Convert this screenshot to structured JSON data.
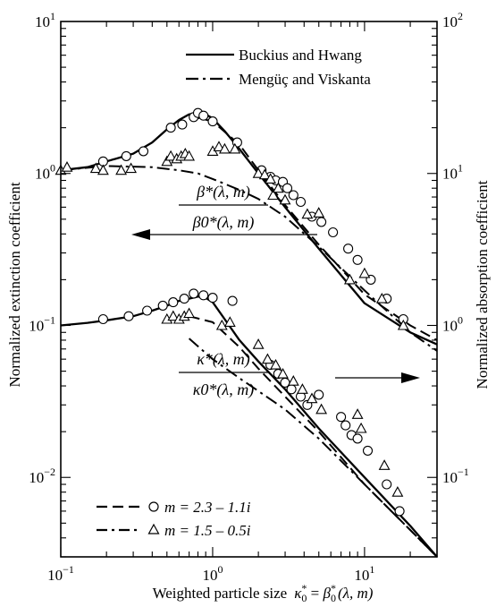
{
  "chart_data": {
    "type": "scatter",
    "x_scale": "log",
    "y_scale": "log",
    "xlim": [
      0.1,
      30
    ],
    "ylim_left": [
      0.003,
      10
    ],
    "ylim_right": [
      0.03,
      100
    ],
    "grid": false,
    "legend_position": "top-right",
    "x_ticks": [
      {
        "value": 0.1,
        "base": "10",
        "exp": "−1"
      },
      {
        "value": 1,
        "base": "10",
        "exp": "0"
      },
      {
        "value": 10,
        "base": "10",
        "exp": "1"
      }
    ],
    "y_left_ticks": [
      {
        "value": 0.01,
        "base": "10",
        "exp": "−2"
      },
      {
        "value": 0.1,
        "base": "10",
        "exp": "−1"
      },
      {
        "value": 1,
        "base": "10",
        "exp": "0"
      },
      {
        "value": 10,
        "base": "10",
        "exp": "1"
      }
    ],
    "y_right_ticks": [
      {
        "value": 0.1,
        "base": "10",
        "exp": "−1"
      },
      {
        "value": 1,
        "base": "10",
        "exp": "0"
      },
      {
        "value": 10,
        "base": "10",
        "exp": "1"
      },
      {
        "value": 100,
        "base": "10",
        "exp": "2"
      }
    ],
    "xlabel": "Weighted particle size",
    "xlabel_math": {
      "k": "κ",
      "sup": "*",
      "sub": "0",
      "eq": " = ",
      "b": "β",
      "args": "(λ, m)"
    },
    "ylabel": "Normalized extinction coefficient",
    "ylabel_right": "Normalized absorption coefficient",
    "legend": [
      {
        "label": "Buckius and Hwang",
        "style": "solid"
      },
      {
        "label": "Mengüç and Viskanta",
        "style": "dash-dot"
      }
    ],
    "marker_legend": [
      {
        "style": "dashed",
        "marker": "circle",
        "label": "m = 2.3 – 1.1i"
      },
      {
        "style": "dash-dot",
        "marker": "triangle",
        "label": "m = 1.5 – 0.5i"
      }
    ],
    "annotations": {
      "beta_num": "β*(λ, m)",
      "beta_den": "β0*(λ, m)",
      "kappa_num": "κ*(λ, m)",
      "kappa_den": "κ0*(λ, m)",
      "beta_axis": "left",
      "kappa_axis": "right"
    },
    "series": [
      {
        "name": "Buckius and Hwang",
        "axis": "left",
        "style": "solid",
        "x": [
          0.1,
          0.15,
          0.2,
          0.3,
          0.4,
          0.5,
          0.6,
          0.7,
          0.8,
          0.9,
          1.0,
          1.2,
          1.5,
          2,
          3,
          5,
          10,
          20,
          30
        ],
        "y": [
          1.05,
          1.1,
          1.2,
          1.35,
          1.6,
          1.95,
          2.25,
          2.45,
          2.5,
          2.45,
          2.3,
          1.9,
          1.45,
          1.0,
          0.6,
          0.32,
          0.14,
          0.09,
          0.075
        ]
      },
      {
        "name": "Mengüç and Viskanta",
        "axis": "left",
        "style": "dash-dot",
        "x": [
          0.1,
          0.2,
          0.4,
          0.6,
          0.8,
          1.0,
          1.5,
          2,
          3,
          5,
          10,
          20,
          30
        ],
        "y": [
          1.05,
          1.12,
          1.1,
          1.05,
          1.0,
          0.92,
          0.78,
          0.68,
          0.52,
          0.33,
          0.17,
          0.09,
          0.068
        ]
      },
      {
        "name": "Dashed m = 2.3 – 1.1i",
        "axis": "left",
        "style": "dashed",
        "x": [
          0.7,
          1.0,
          1.5,
          2,
          3,
          5,
          10,
          20,
          30
        ],
        "y": [
          2.4,
          2.2,
          1.55,
          1.05,
          0.62,
          0.34,
          0.16,
          0.1,
          0.08
        ]
      },
      {
        "name": "m = 2.3 – 1.1i",
        "axis": "left",
        "marker": "circle",
        "x": [
          0.19,
          0.27,
          0.35,
          0.53,
          0.63,
          0.75,
          0.8,
          0.87,
          1.0,
          1.45,
          2.1,
          2.4,
          2.6,
          2.9,
          3.1,
          3.4,
          3.8,
          4.5,
          5.2,
          6.2,
          7.8,
          9.0,
          11.0,
          14.0,
          18.0
        ],
        "y": [
          1.2,
          1.3,
          1.4,
          2.0,
          2.1,
          2.35,
          2.5,
          2.4,
          2.2,
          1.6,
          1.05,
          0.95,
          0.9,
          0.88,
          0.8,
          0.72,
          0.65,
          0.52,
          0.48,
          0.41,
          0.32,
          0.27,
          0.2,
          0.15,
          0.11
        ]
      },
      {
        "name": "m = 1.5 – 0.5i",
        "axis": "left",
        "marker": "triangle",
        "x": [
          0.1,
          0.11,
          0.17,
          0.19,
          0.25,
          0.29,
          0.5,
          0.53,
          0.58,
          0.62,
          0.66,
          0.7,
          1.0,
          1.1,
          1.2,
          1.4,
          2.0,
          2.2,
          2.4,
          2.5,
          2.7,
          3.0,
          4.2,
          5.0,
          8.0,
          10.0,
          13.0,
          18.0
        ],
        "y": [
          1.05,
          1.1,
          1.08,
          1.05,
          1.05,
          1.08,
          1.2,
          1.3,
          1.25,
          1.3,
          1.35,
          1.3,
          1.4,
          1.5,
          1.45,
          1.45,
          1.0,
          0.98,
          0.92,
          0.72,
          0.8,
          0.67,
          0.54,
          0.55,
          0.2,
          0.22,
          0.15,
          0.1
        ]
      },
      {
        "name": "Buckius and Hwang",
        "axis": "right",
        "style": "solid",
        "x": [
          0.1,
          0.15,
          0.2,
          0.3,
          0.4,
          0.5,
          0.6,
          0.7,
          0.8,
          0.9,
          1.0,
          1.2,
          1.5,
          2,
          3,
          5,
          10,
          20,
          30
        ],
        "y": [
          1.0,
          1.04,
          1.08,
          1.15,
          1.25,
          1.35,
          1.45,
          1.5,
          1.55,
          1.52,
          1.42,
          1.1,
          0.8,
          0.58,
          0.38,
          0.21,
          0.1,
          0.048,
          0.03
        ]
      },
      {
        "name": "Mengüç and Viskanta",
        "axis": "right",
        "style": "dash-dot",
        "x": [
          0.7,
          1.0,
          1.5,
          2,
          3,
          5,
          10,
          20,
          30
        ],
        "y": [
          0.82,
          0.6,
          0.45,
          0.37,
          0.28,
          0.18,
          0.09,
          0.045,
          0.03
        ]
      },
      {
        "name": "Dashed m = 2.3 – 1.1i",
        "axis": "right",
        "style": "dashed",
        "x": [
          0.7,
          1.0,
          1.5,
          2,
          3,
          5,
          10,
          20,
          30
        ],
        "y": [
          1.15,
          1.05,
          0.72,
          0.52,
          0.34,
          0.2,
          0.09,
          0.045,
          0.03
        ]
      },
      {
        "name": "m = 2.3 – 1.1i",
        "axis": "right",
        "marker": "circle",
        "x": [
          0.19,
          0.28,
          0.37,
          0.47,
          0.55,
          0.65,
          0.75,
          0.87,
          1.0,
          1.35,
          2.4,
          2.7,
          3.0,
          3.3,
          3.8,
          4.2,
          5.0,
          7.0,
          7.5,
          8.2,
          9.0,
          10.5,
          14.0,
          17.0
        ],
        "y": [
          1.1,
          1.15,
          1.25,
          1.35,
          1.42,
          1.5,
          1.62,
          1.58,
          1.52,
          1.45,
          0.55,
          0.48,
          0.42,
          0.38,
          0.34,
          0.3,
          0.35,
          0.25,
          0.22,
          0.19,
          0.18,
          0.15,
          0.09,
          0.06
        ]
      },
      {
        "name": "m = 1.5 – 0.5i",
        "axis": "right",
        "marker": "triangle",
        "x": [
          0.5,
          0.55,
          0.6,
          0.65,
          0.7,
          1.15,
          1.3,
          2.0,
          2.3,
          2.6,
          2.9,
          3.4,
          3.9,
          4.5,
          5.2,
          9.0,
          9.5,
          13.5,
          16.5
        ],
        "y": [
          1.1,
          1.15,
          1.1,
          1.15,
          1.2,
          1.0,
          1.05,
          0.75,
          0.6,
          0.55,
          0.48,
          0.43,
          0.38,
          0.33,
          0.28,
          0.26,
          0.21,
          0.12,
          0.08
        ]
      }
    ]
  }
}
